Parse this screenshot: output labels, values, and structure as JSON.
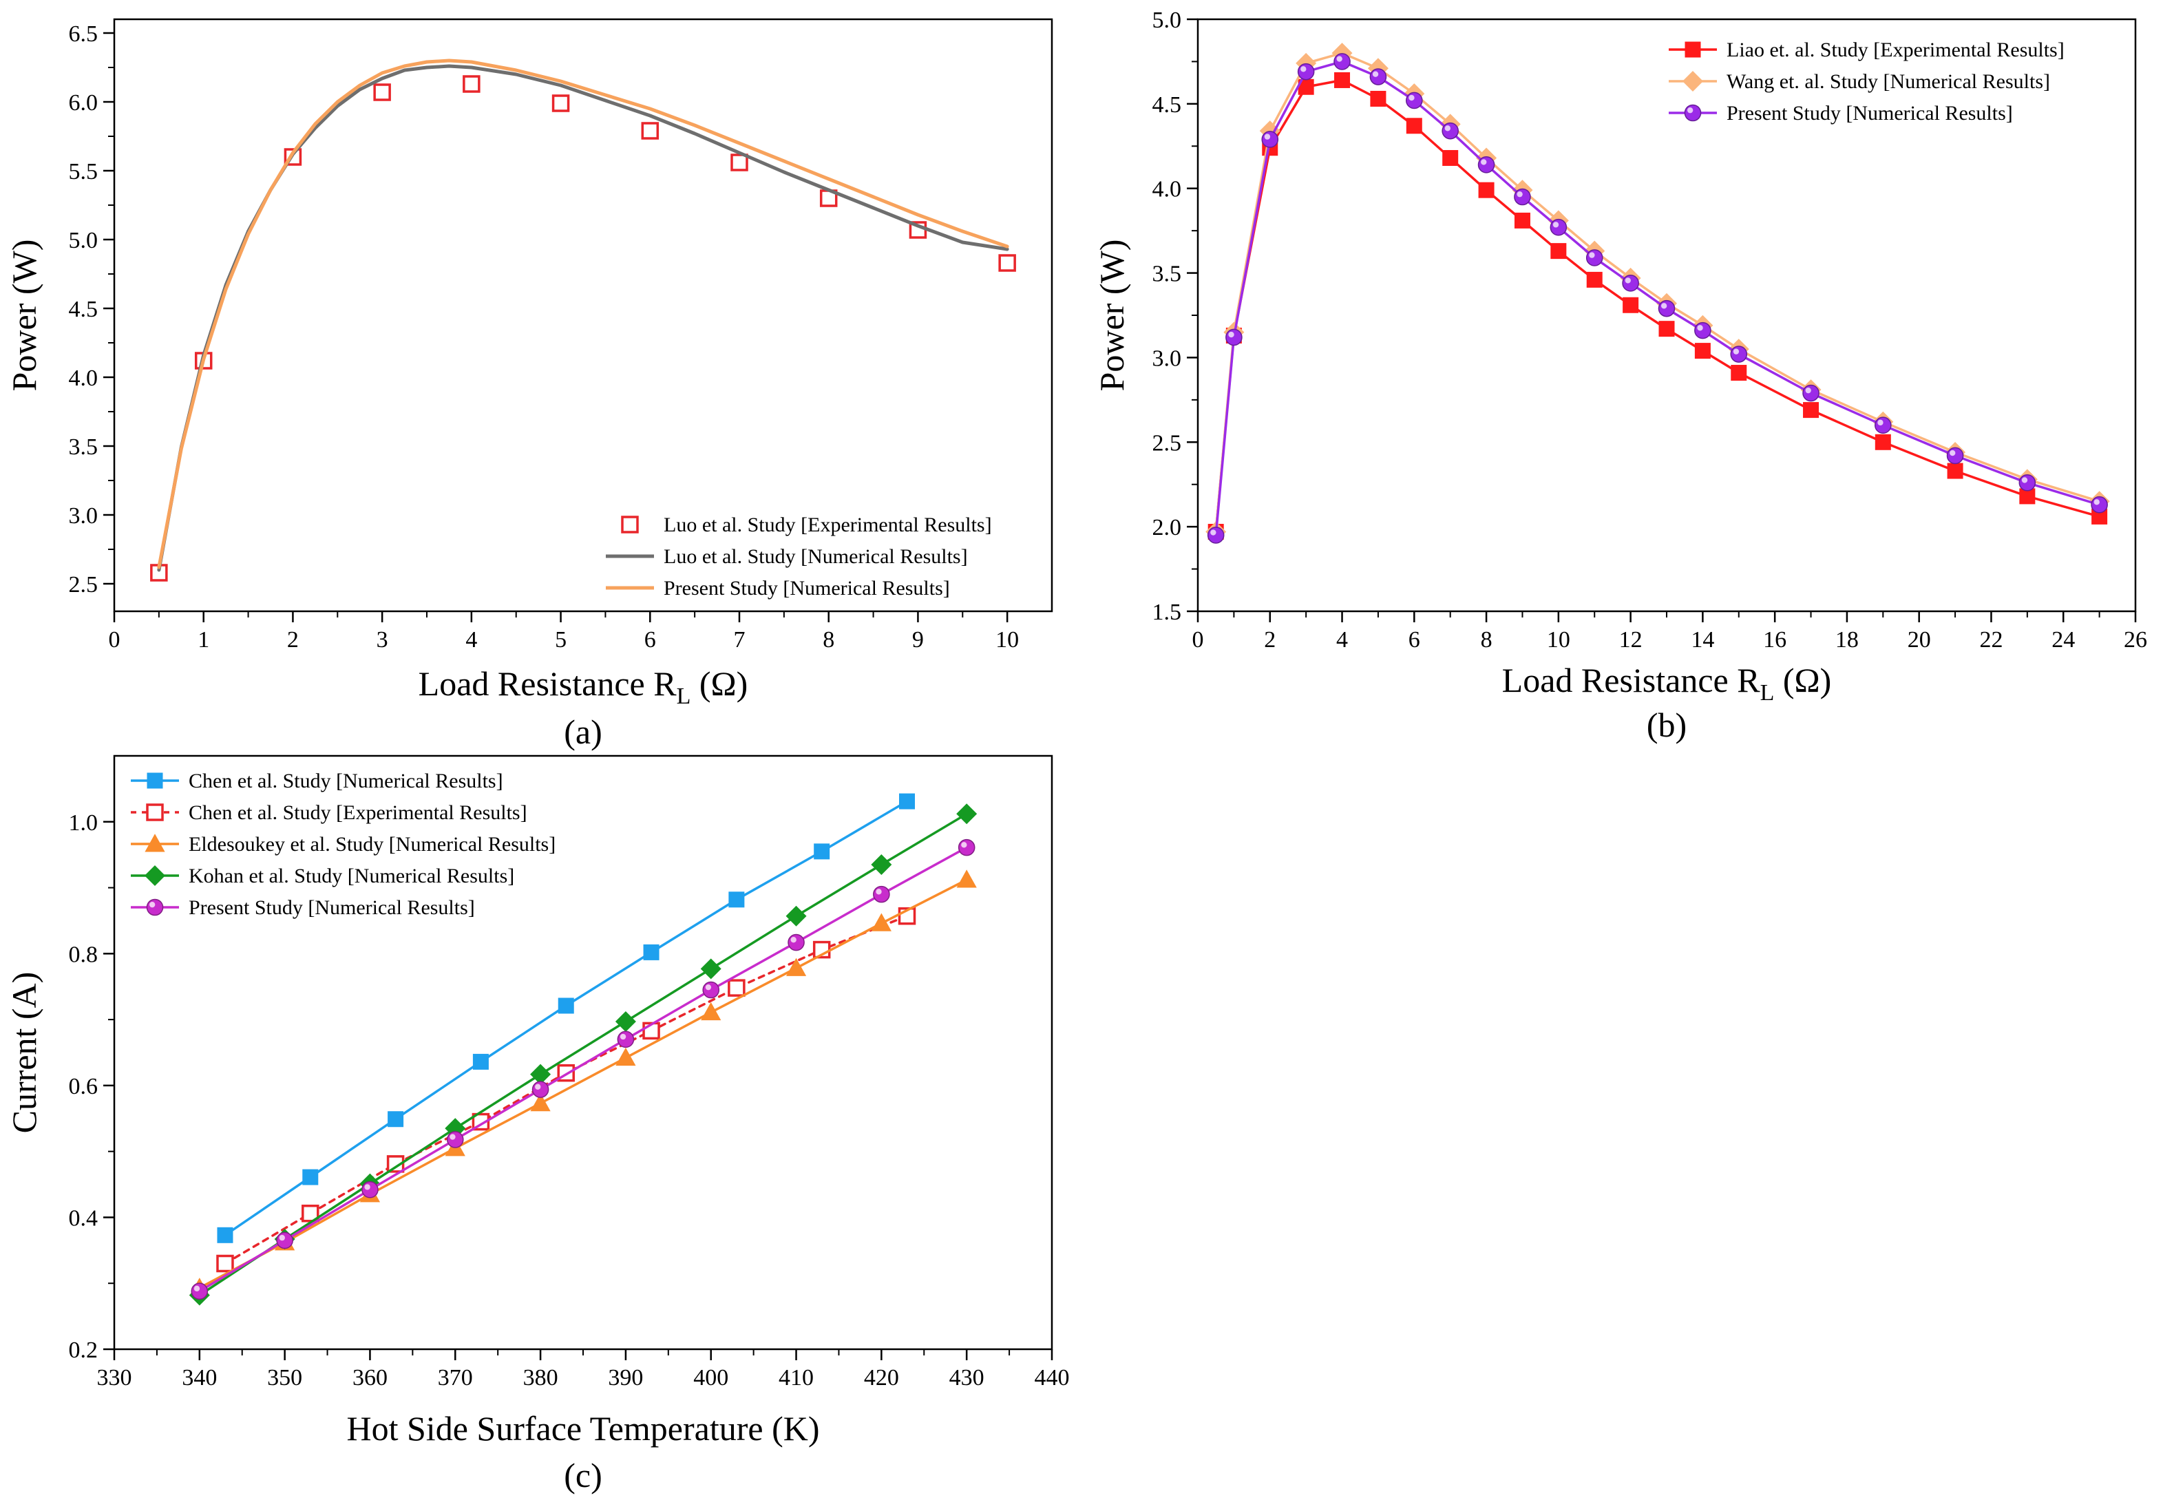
{
  "chart_data": [
    {
      "id": "a",
      "type": "line",
      "panel_label": "(a)",
      "title": "",
      "xlabel": "Load Resistance R",
      "xlabel_sub": "L",
      "xlabel_suffix": " (Ω)",
      "ylabel": "Power (W)",
      "xlim": [
        0,
        10.5
      ],
      "ylim": [
        2.3,
        6.6
      ],
      "xticks": [
        0,
        1,
        2,
        3,
        4,
        5,
        6,
        7,
        8,
        9,
        10
      ],
      "yticks": [
        2.5,
        3.0,
        3.5,
        4.0,
        4.5,
        5.0,
        5.5,
        6.0,
        6.5
      ],
      "ytick_decimals": 1,
      "grid": false,
      "legend_position": "bottom-right",
      "series": [
        {
          "name": "Luo et al. Study [Experimental Results]",
          "kind": "markers",
          "marker": "square-open",
          "color": "#e8262b",
          "x": [
            0.5,
            1,
            2,
            3,
            4,
            5,
            6,
            7,
            8,
            9,
            10
          ],
          "y": [
            2.58,
            4.12,
            5.6,
            6.07,
            6.13,
            5.99,
            5.79,
            5.56,
            5.3,
            5.07,
            4.83
          ]
        },
        {
          "name": "Luo et al. Study [Numerical Results]",
          "kind": "line",
          "color": "#6e6e6e",
          "x": [
            0.5,
            0.75,
            1,
            1.25,
            1.5,
            1.75,
            2,
            2.25,
            2.5,
            2.75,
            3,
            3.25,
            3.5,
            3.75,
            4,
            4.5,
            5,
            5.5,
            6,
            6.5,
            7,
            7.5,
            8,
            8.5,
            9,
            9.5,
            10
          ],
          "y": [
            2.6,
            3.49,
            4.16,
            4.67,
            5.06,
            5.36,
            5.62,
            5.81,
            5.97,
            6.09,
            6.17,
            6.23,
            6.25,
            6.26,
            6.25,
            6.2,
            6.12,
            6.01,
            5.9,
            5.77,
            5.63,
            5.49,
            5.36,
            5.23,
            5.1,
            4.98,
            4.93
          ]
        },
        {
          "name": "Present Study [Numerical Results]",
          "kind": "line",
          "color": "#f7a25c",
          "x": [
            0.5,
            0.75,
            1,
            1.25,
            1.5,
            1.75,
            2,
            2.25,
            2.5,
            2.75,
            3,
            3.25,
            3.5,
            3.75,
            4,
            4.5,
            5,
            5.5,
            6,
            6.5,
            7,
            7.5,
            8,
            8.5,
            9,
            9.5,
            10
          ],
          "y": [
            2.62,
            3.48,
            4.13,
            4.64,
            5.04,
            5.36,
            5.63,
            5.84,
            6.0,
            6.12,
            6.21,
            6.26,
            6.29,
            6.3,
            6.29,
            6.23,
            6.15,
            6.05,
            5.95,
            5.83,
            5.7,
            5.57,
            5.44,
            5.31,
            5.18,
            5.06,
            4.95
          ]
        }
      ]
    },
    {
      "id": "b",
      "type": "line",
      "panel_label": "(b)",
      "title": "",
      "xlabel": "Load Resistance R",
      "xlabel_sub": "L",
      "xlabel_suffix": " (Ω)",
      "ylabel": "Power (W)",
      "xlim": [
        0,
        26
      ],
      "ylim": [
        1.5,
        5.0
      ],
      "xticks": [
        0,
        2,
        4,
        6,
        8,
        10,
        12,
        14,
        16,
        18,
        20,
        22,
        24,
        26
      ],
      "yticks": [
        1.5,
        2.0,
        2.5,
        3.0,
        3.5,
        4.0,
        4.5,
        5.0
      ],
      "ytick_decimals": 1,
      "grid": false,
      "legend_position": "top-right",
      "series": [
        {
          "name": "Liao et. al. Study [Experimental Results]",
          "kind": "line-markers",
          "marker": "square",
          "color": "#ff1a1a",
          "x": [
            0.5,
            1,
            2,
            3,
            4,
            5,
            6,
            7,
            8,
            9,
            10,
            11,
            12,
            13,
            14,
            15,
            17,
            19,
            21,
            23,
            25
          ],
          "y": [
            1.97,
            3.13,
            4.24,
            4.6,
            4.64,
            4.53,
            4.37,
            4.18,
            3.99,
            3.81,
            3.63,
            3.46,
            3.31,
            3.17,
            3.04,
            2.91,
            2.69,
            2.5,
            2.33,
            2.18,
            2.06
          ]
        },
        {
          "name": "Wang et. al. Study [Numerical Results]",
          "kind": "line-markers",
          "marker": "diamond",
          "color": "#fbb57c",
          "x": [
            0.5,
            1,
            2,
            3,
            4,
            5,
            6,
            7,
            8,
            9,
            10,
            11,
            12,
            13,
            14,
            15,
            17,
            19,
            21,
            23,
            25
          ],
          "y": [
            1.97,
            3.15,
            4.34,
            4.74,
            4.8,
            4.71,
            4.56,
            4.38,
            4.18,
            3.99,
            3.81,
            3.63,
            3.47,
            3.32,
            3.19,
            3.05,
            2.81,
            2.62,
            2.44,
            2.28,
            2.15
          ]
        },
        {
          "name": "Present Study [Numerical Results]",
          "kind": "line-markers",
          "marker": "sphere",
          "color": "#9b2be8",
          "x": [
            0.5,
            1,
            2,
            3,
            4,
            5,
            6,
            7,
            8,
            9,
            10,
            11,
            12,
            13,
            14,
            15,
            17,
            19,
            21,
            23,
            25
          ],
          "y": [
            1.95,
            3.12,
            4.29,
            4.69,
            4.75,
            4.66,
            4.52,
            4.34,
            4.14,
            3.95,
            3.77,
            3.59,
            3.44,
            3.29,
            3.16,
            3.02,
            2.79,
            2.6,
            2.42,
            2.26,
            2.13
          ]
        }
      ]
    },
    {
      "id": "c",
      "type": "line",
      "panel_label": "(c)",
      "title": "",
      "xlabel": "Hot Side Surface Temperature (K)",
      "xlabel_sub": "",
      "xlabel_suffix": "",
      "ylabel": "Current (A)",
      "xlim": [
        330,
        440
      ],
      "ylim": [
        0.2,
        1.1
      ],
      "xticks": [
        330,
        340,
        350,
        360,
        370,
        380,
        390,
        400,
        410,
        420,
        430,
        440
      ],
      "yticks": [
        0.2,
        0.4,
        0.6,
        0.8,
        1.0
      ],
      "ytick_decimals": 1,
      "grid": false,
      "legend_position": "top-left",
      "series": [
        {
          "name": "Chen et al. Study [Numerical Results]",
          "kind": "line-markers",
          "marker": "square",
          "color": "#1ea0ee",
          "x": [
            343,
            353,
            363,
            373,
            383,
            393,
            403,
            413,
            423
          ],
          "y": [
            0.373,
            0.461,
            0.549,
            0.636,
            0.721,
            0.802,
            0.882,
            0.955,
            1.031
          ]
        },
        {
          "name": "Chen et al. Study [Experimental Results]",
          "kind": "line-markers",
          "marker": "square-open",
          "dashed": true,
          "color": "#e8262b",
          "x": [
            343,
            353,
            363,
            373,
            383,
            393,
            403,
            413,
            423
          ],
          "y": [
            0.33,
            0.406,
            0.481,
            0.545,
            0.619,
            0.683,
            0.748,
            0.806,
            0.857
          ]
        },
        {
          "name": "Eldesoukey et al. Study [Numerical Results]",
          "kind": "line-markers",
          "marker": "triangle",
          "color": "#f98b2a",
          "x": [
            340,
            350,
            360,
            370,
            380,
            390,
            400,
            410,
            420,
            430
          ],
          "y": [
            0.293,
            0.362,
            0.435,
            0.505,
            0.573,
            0.642,
            0.711,
            0.778,
            0.846,
            0.912
          ]
        },
        {
          "name": "Kohan et al. Study [Numerical Results]",
          "kind": "line-markers",
          "marker": "diamond",
          "color": "#159a22",
          "x": [
            340,
            350,
            360,
            370,
            380,
            390,
            400,
            410,
            420,
            430
          ],
          "y": [
            0.282,
            0.367,
            0.451,
            0.535,
            0.617,
            0.697,
            0.777,
            0.857,
            0.935,
            1.012
          ]
        },
        {
          "name": "Present Study [Numerical Results]",
          "kind": "line-markers",
          "marker": "sphere",
          "color": "#c82ccc",
          "x": [
            340,
            350,
            360,
            370,
            380,
            390,
            400,
            410,
            420,
            430
          ],
          "y": [
            0.288,
            0.365,
            0.442,
            0.518,
            0.594,
            0.67,
            0.745,
            0.817,
            0.89,
            0.961
          ]
        }
      ]
    }
  ]
}
